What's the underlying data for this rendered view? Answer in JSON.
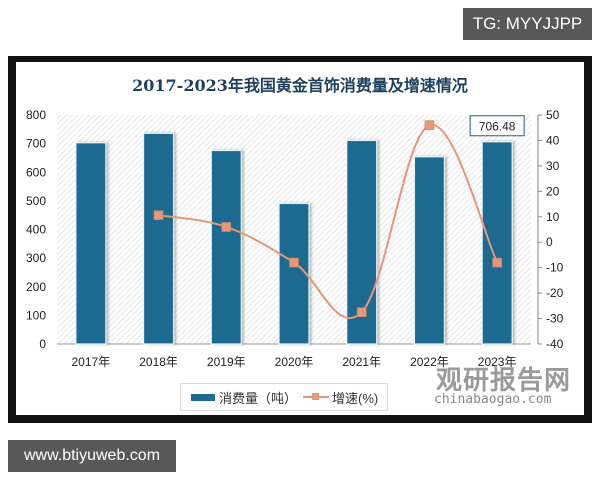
{
  "overlays": {
    "tg_badge": "TG: MYYJJPP",
    "site_badge": "www.btiyuweb.com"
  },
  "watermark": {
    "cn": "观研报告网",
    "en": "chinabaogao.com"
  },
  "chart_data": {
    "type": "bar",
    "title": "2017-2023年我国黄金首饰消费量及增速情况",
    "categories": [
      "2017年",
      "2018年",
      "2019年",
      "2020年",
      "2021年",
      "2022年",
      "2023年"
    ],
    "series": [
      {
        "name": "消费量（吨）",
        "type": "bar",
        "axis": "left",
        "color": "#1f6b8f",
        "values": [
          703,
          736,
          676,
          491,
          711,
          654,
          706.48
        ]
      },
      {
        "name": "增速(%)",
        "type": "line",
        "axis": "right",
        "color": "#e8967a",
        "values": [
          null,
          10.6,
          6.0,
          -8.0,
          -27.5,
          46.0,
          -8.0
        ]
      }
    ],
    "data_labels": [
      {
        "category": "2023年",
        "series": "消费量（吨）",
        "text": "706.48"
      }
    ],
    "ylim_left": [
      0,
      800
    ],
    "yticks_left": [
      0,
      100,
      200,
      300,
      400,
      500,
      600,
      700,
      800
    ],
    "ylim_right": [
      -40,
      50
    ],
    "yticks_right": [
      -40,
      -30,
      -20,
      -10,
      0,
      10,
      20,
      30,
      40,
      50
    ],
    "xlabel": "",
    "ylabel": "",
    "grid": false,
    "legend_position": "bottom",
    "legend": [
      "消费量（吨）",
      "增速(%)"
    ]
  }
}
